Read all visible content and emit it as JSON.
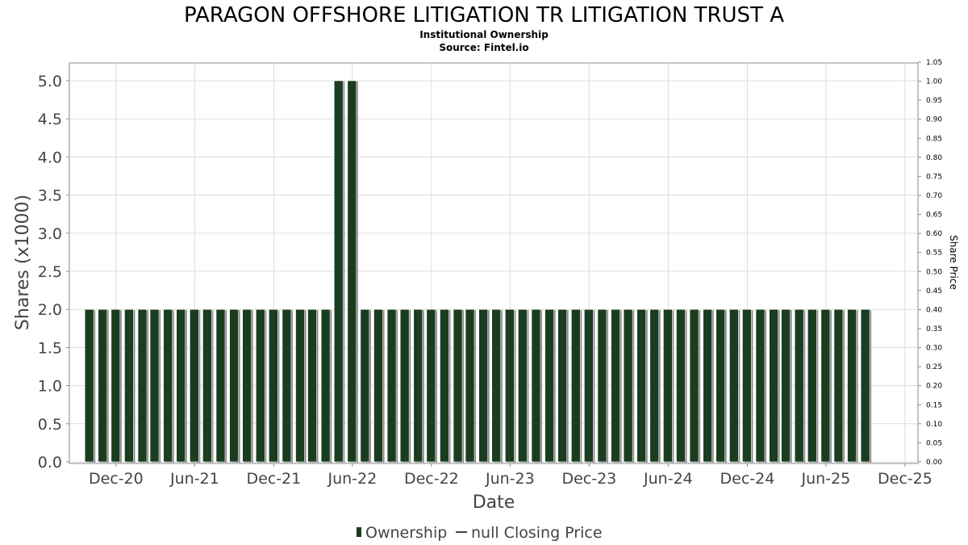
{
  "chart_data": {
    "type": "bar",
    "title": "PARAGON OFFSHORE LITIGATION TR LITIGATION TRUST A",
    "subtitle_lines": [
      "Institutional Ownership",
      "Source: Fintel.io"
    ],
    "xlabel": "Date",
    "ylabel": "Shares (x1000)",
    "y2label": "Share Price",
    "ylim": [
      0,
      5.0
    ],
    "y2lim": [
      0,
      1.05
    ],
    "x_range": [
      "2020-08-15",
      "2025-12-31"
    ],
    "yticks": [
      "0.0",
      "0.5",
      "1.0",
      "1.5",
      "2.0",
      "2.5",
      "3.0",
      "3.5",
      "4.0",
      "4.5",
      "5.0"
    ],
    "y2ticks": [
      "0.00",
      "0.05",
      "0.10",
      "0.15",
      "0.20",
      "0.25",
      "0.30",
      "0.35",
      "0.40",
      "0.45",
      "0.50",
      "0.55",
      "0.60",
      "0.65",
      "0.70",
      "0.75",
      "0.80",
      "0.85",
      "0.90",
      "0.95",
      "1.00",
      "1.05"
    ],
    "xticks": [
      {
        "label": "Dec-20",
        "date": "2020-12-01"
      },
      {
        "label": "Jun-21",
        "date": "2021-06-01"
      },
      {
        "label": "Dec-21",
        "date": "2021-12-01"
      },
      {
        "label": "Jun-22",
        "date": "2022-06-01"
      },
      {
        "label": "Dec-22",
        "date": "2022-12-01"
      },
      {
        "label": "Jun-23",
        "date": "2023-06-01"
      },
      {
        "label": "Dec-23",
        "date": "2023-12-01"
      },
      {
        "label": "Jun-24",
        "date": "2024-06-01"
      },
      {
        "label": "Dec-24",
        "date": "2024-12-01"
      },
      {
        "label": "Jun-25",
        "date": "2025-06-01"
      },
      {
        "label": "Dec-25",
        "date": "2025-12-01"
      }
    ],
    "series": [
      {
        "name": "Ownership",
        "color": "#1a3d1f",
        "dates": [
          "2020-09-30",
          "2020-10-31",
          "2020-11-30",
          "2020-12-31",
          "2021-01-31",
          "2021-02-28",
          "2021-03-31",
          "2021-04-30",
          "2021-05-31",
          "2021-06-30",
          "2021-07-31",
          "2021-08-31",
          "2021-09-30",
          "2021-10-31",
          "2021-11-30",
          "2021-12-31",
          "2022-01-31",
          "2022-02-28",
          "2022-03-31",
          "2022-04-30",
          "2022-05-31",
          "2022-06-30",
          "2022-07-31",
          "2022-08-31",
          "2022-09-30",
          "2022-10-31",
          "2022-11-30",
          "2022-12-31",
          "2023-01-31",
          "2023-02-28",
          "2023-03-31",
          "2023-04-30",
          "2023-05-31",
          "2023-06-30",
          "2023-07-31",
          "2023-08-31",
          "2023-09-30",
          "2023-10-31",
          "2023-11-30",
          "2023-12-31",
          "2024-01-31",
          "2024-02-29",
          "2024-03-31",
          "2024-04-30",
          "2024-05-31",
          "2024-06-30",
          "2024-07-31",
          "2024-08-31",
          "2024-09-30",
          "2024-10-31",
          "2024-11-30",
          "2024-12-31",
          "2025-01-31",
          "2025-02-28",
          "2025-03-31",
          "2025-04-30",
          "2025-05-31",
          "2025-06-30",
          "2025-07-31",
          "2025-08-31"
        ],
        "values": [
          2,
          2,
          2,
          2,
          2,
          2,
          2,
          2,
          2,
          2,
          2,
          2,
          2,
          2,
          2,
          2,
          2,
          2,
          2,
          5,
          5,
          2,
          2,
          2,
          2,
          2,
          2,
          2,
          2,
          2,
          2,
          2,
          2,
          2,
          2,
          2,
          2,
          2,
          2,
          2,
          2,
          2,
          2,
          2,
          2,
          2,
          2,
          2,
          2,
          2,
          2,
          2,
          2,
          2,
          2,
          2,
          2,
          2,
          2,
          2
        ]
      },
      {
        "name": "null Closing Price",
        "color": "#333333",
        "values": []
      }
    ],
    "legend_position": "bottom-center",
    "grid": true
  }
}
